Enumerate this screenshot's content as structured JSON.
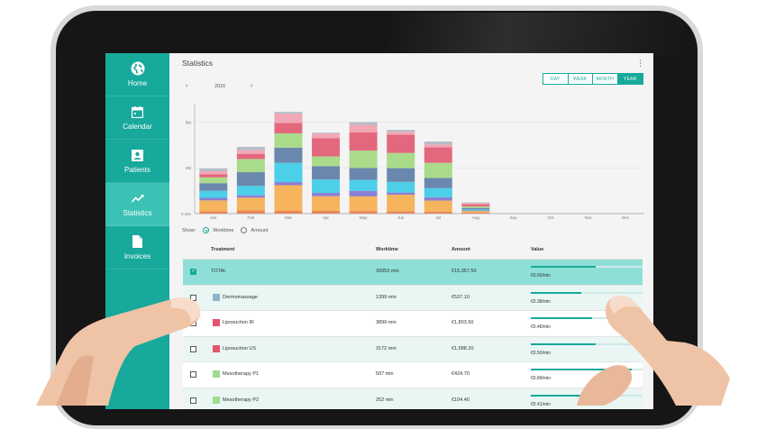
{
  "sidebar": {
    "items": [
      {
        "label": "Home",
        "icon": "globe-icon"
      },
      {
        "label": "Calendar",
        "icon": "calendar-icon"
      },
      {
        "label": "Patients",
        "icon": "patients-icon"
      },
      {
        "label": "Statistics",
        "icon": "chart-line-icon",
        "active": true
      },
      {
        "label": "Invoices",
        "icon": "document-icon"
      }
    ]
  },
  "header": {
    "title": "Statistics",
    "menu_icon": "kebab-icon"
  },
  "period": {
    "options": [
      "DAY",
      "WEEK",
      "MONTH",
      "YEAR"
    ],
    "selected": "YEAR"
  },
  "year_nav": {
    "prev": "‹",
    "year": "2016",
    "next": "›"
  },
  "chart_data": {
    "type": "bar",
    "stacked": true,
    "categories": [
      "Jan",
      "Feb",
      "Mar",
      "Apr",
      "May",
      "Jun",
      "Jul",
      "Aug",
      "Sep",
      "Oct",
      "Nov",
      "Dec"
    ],
    "y_ticks": [
      "5M",
      "2M",
      "0 min"
    ],
    "ylim": [
      0,
      6000
    ],
    "series": [
      {
        "color": "#e8875a",
        "values": [
          120,
          170,
          150,
          150,
          140,
          130,
          110,
          50,
          0,
          0,
          0,
          0
        ]
      },
      {
        "color": "#f6b45c",
        "values": [
          600,
          700,
          1400,
          800,
          800,
          900,
          600,
          90,
          0,
          0,
          0,
          0
        ]
      },
      {
        "color": "#8c7fd4",
        "values": [
          140,
          130,
          170,
          180,
          300,
          120,
          180,
          30,
          0,
          0,
          0,
          0
        ]
      },
      {
        "color": "#4ccfe8",
        "values": [
          380,
          510,
          1050,
          730,
          600,
          580,
          500,
          60,
          0,
          0,
          0,
          0
        ]
      },
      {
        "color": "#6a88ad",
        "values": [
          420,
          750,
          830,
          730,
          650,
          750,
          560,
          80,
          0,
          0,
          0,
          0
        ]
      },
      {
        "color": "#aadb8a",
        "values": [
          320,
          720,
          780,
          530,
          950,
          830,
          820,
          80,
          0,
          0,
          0,
          0
        ]
      },
      {
        "color": "#e4687d",
        "values": [
          170,
          280,
          570,
          1000,
          1000,
          1000,
          850,
          120,
          0,
          0,
          0,
          0
        ]
      },
      {
        "color": "#f2a7b4",
        "values": [
          160,
          200,
          500,
          250,
          400,
          160,
          150,
          60,
          0,
          0,
          0,
          0
        ]
      },
      {
        "color": "#b4bcc8",
        "values": [
          150,
          180,
          100,
          50,
          150,
          100,
          160,
          40,
          0,
          0,
          0,
          0
        ]
      }
    ]
  },
  "show": {
    "label": "Show:",
    "options": [
      "Worktime",
      "Amount"
    ],
    "selected": "Worktime"
  },
  "table": {
    "headers": {
      "treatment": "Treatment",
      "worktime": "Worktime",
      "amount": "Amount",
      "value": "Value"
    },
    "rows": [
      {
        "name": "TOTAL",
        "worktime": "30953 min",
        "amount": "€15,357.50",
        "value": "€0.50/min",
        "checked": true,
        "fraction": 0.58
      },
      {
        "name": "Dermomassage",
        "worktime": "1399 min",
        "amount": "€537.10",
        "value": "€0.38/min",
        "color": "#8fb4c9",
        "fraction": 0.45
      },
      {
        "name": "Liposuction IR",
        "worktime": "3899 min",
        "amount": "€1,803.50",
        "value": "€0.46/min",
        "color": "#e4566f",
        "fraction": 0.55
      },
      {
        "name": "Liposuction US",
        "worktime": "3172 min",
        "amount": "€1,588.20",
        "value": "€0.50/min",
        "color": "#e4566f",
        "fraction": 0.58
      },
      {
        "name": "Mesotherapy P1",
        "worktime": "507 min",
        "amount": "€424.70",
        "value": "€0.84/min",
        "color": "#9fdc8e",
        "fraction": 0.9
      },
      {
        "name": "Mesotherapy P2",
        "worktime": "252 min",
        "amount": "€104.40",
        "value": "€0.41/min",
        "color": "#9fdc8e",
        "fraction": 0.5
      }
    ]
  }
}
